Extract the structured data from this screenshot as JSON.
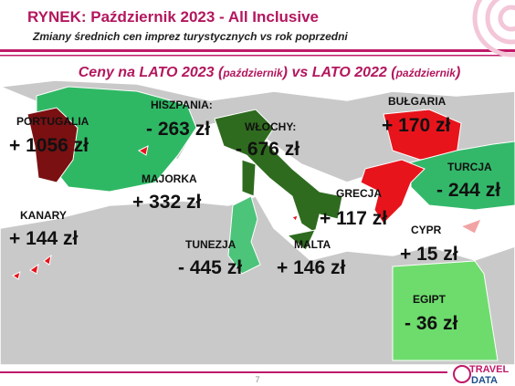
{
  "header": {
    "title": "RYNEK: Październik 2023 - All Inclusive",
    "subtitle": "Zmiany średnich cen imprez turystycznych vs rok poprzedni"
  },
  "map": {
    "title_parts": [
      "Ceny na LATO 2023 (",
      "październik",
      ") vs  LATO 2022 (",
      "październik",
      ")"
    ],
    "regions": [
      {
        "name": "PORTUGALIA",
        "change": "+ 1056 zł"
      },
      {
        "name": "HISZPANIA:",
        "change": "- 263 zł"
      },
      {
        "name": "WŁOCHY:",
        "change": "- 676 zł"
      },
      {
        "name": "BUŁGARIA",
        "change": "+ 170 zł"
      },
      {
        "name": "MAJORKA",
        "change": "+ 332 zł"
      },
      {
        "name": "TURCJA",
        "change": "- 244 zł"
      },
      {
        "name": "KANARY",
        "change": "+ 144 zł"
      },
      {
        "name": "GRECJA",
        "change": "+ 117 zł"
      },
      {
        "name": "CYPR",
        "change": "+ 15 zł"
      },
      {
        "name": "TUNEZJA",
        "change": "- 445 zł"
      },
      {
        "name": "MALTA",
        "change": "+ 146 zł"
      },
      {
        "name": "EGIPT",
        "change": "- 36 zł"
      }
    ]
  },
  "footer": {
    "page": "7",
    "logo_top": "TRAVEL",
    "logo_bottom": "DATA"
  }
}
